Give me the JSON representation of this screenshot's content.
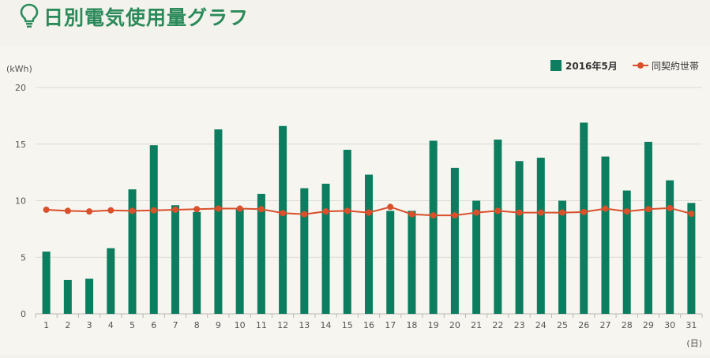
{
  "page": {
    "title": "日別電気使用量グラフ",
    "title_icon": "lightbulb-icon",
    "title_color": "#2b8a5a"
  },
  "chart_data": {
    "type": "bar",
    "ylabel": "(kWh)",
    "xlabel": "(日)",
    "ylim": [
      0,
      20
    ],
    "yticks": [
      0,
      5,
      10,
      15,
      20
    ],
    "grid": true,
    "legend_position": "top-right",
    "categories": [
      "1",
      "2",
      "3",
      "4",
      "5",
      "6",
      "7",
      "8",
      "9",
      "10",
      "11",
      "12",
      "13",
      "14",
      "15",
      "16",
      "17",
      "18",
      "19",
      "20",
      "21",
      "22",
      "23",
      "24",
      "25",
      "26",
      "27",
      "28",
      "29",
      "30",
      "31"
    ],
    "series": [
      {
        "name": "2016年5月",
        "kind": "bar",
        "color": "#0c7d5f",
        "values": [
          5.5,
          3.0,
          3.1,
          5.8,
          11.0,
          14.9,
          9.6,
          9.0,
          16.3,
          9.3,
          10.6,
          16.6,
          11.1,
          11.5,
          14.5,
          12.3,
          9.1,
          9.1,
          15.3,
          12.9,
          10.0,
          15.4,
          13.5,
          13.8,
          10.0,
          16.9,
          13.9,
          10.9,
          15.2,
          11.8,
          9.8
        ]
      },
      {
        "name": "同契約世帯",
        "kind": "line",
        "color": "#d9502b",
        "values": [
          9.2,
          9.1,
          9.05,
          9.15,
          9.1,
          9.15,
          9.2,
          9.25,
          9.3,
          9.3,
          9.25,
          8.9,
          8.8,
          9.05,
          9.1,
          8.95,
          9.45,
          8.8,
          8.7,
          8.7,
          8.95,
          9.1,
          8.95,
          8.95,
          8.95,
          9.0,
          9.3,
          9.05,
          9.25,
          9.35,
          8.85
        ]
      }
    ]
  }
}
